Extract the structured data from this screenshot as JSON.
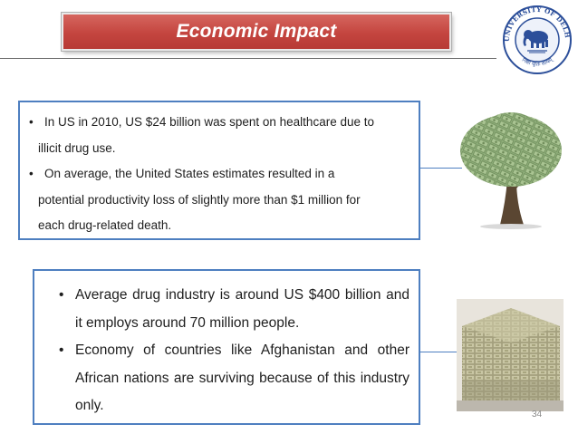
{
  "title": "Economic Impact",
  "box1": {
    "bullet1_part1": "In US in 2010, US $24 billion was spent on healthcare due to",
    "bullet1_part2": "illicit drug use.",
    "bullet2_part1": "On average, the United States estimates resulted in a",
    "bullet2_part2": "potential productivity loss of slightly more than $1 million for",
    "bullet2_part3": "each drug-related death."
  },
  "box2": {
    "bullet1": "Average drug industry is around US $400 billion and it employs around 70 million people.",
    "bullet2": "Economy of countries like Afghanistan and other African nations are surviving because of this industry only."
  },
  "page_number": "34",
  "seal": {
    "top_text": "UNIVERSITY OF DELHI",
    "bottom_text": "निष्ठा धृतिः सत्यम्"
  },
  "colors": {
    "banner": "#c4453f",
    "box_border": "#4e7fc0"
  }
}
